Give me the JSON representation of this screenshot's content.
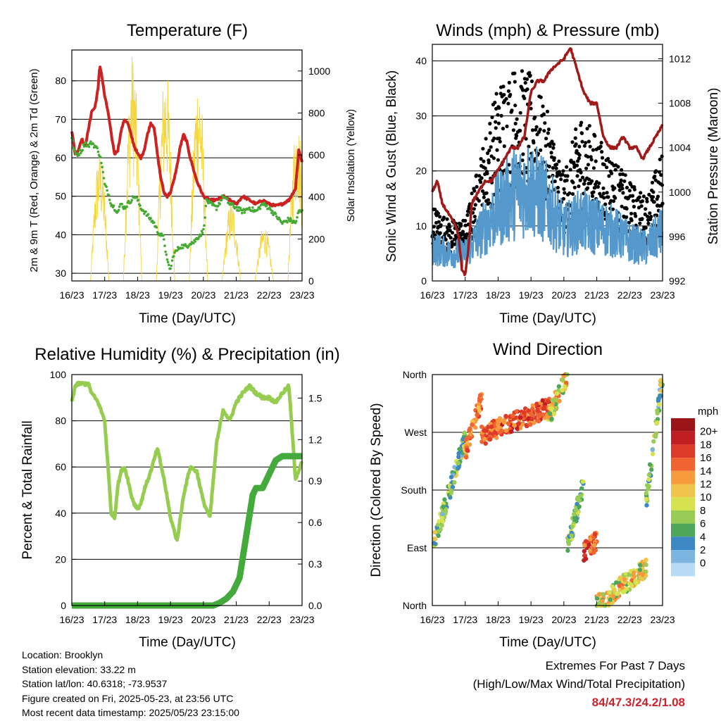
{
  "panels": {
    "temperature": {
      "title": "Temperature (F)",
      "xlabel": "Time (Day/UTC)",
      "ylabel_left": "2m & 9m T (Red, Orange) & 2m Td (Green)",
      "ylabel_right": "Solar Insolation (Yellow)"
    },
    "winds": {
      "title": "Winds (mph) & Pressure (mb)",
      "xlabel": "Time (Day/UTC)",
      "ylabel_left": "Sonic Wind & Gust (Blue, Black)",
      "ylabel_right": "Station Pressure (Maroon)"
    },
    "humidity": {
      "title": "Relative Humidity (%) & Precipitation (in)",
      "xlabel": "Time (Day/UTC)",
      "ylabel_left": "Percent & Total Rainfall"
    },
    "direction": {
      "title": "Wind Direction",
      "xlabel": "Time (Day/UTC)",
      "ylabel_left": "Direction (Colored By Speed)",
      "legend_title": "mph",
      "legend_labels": [
        "20+",
        "18",
        "16",
        "14",
        "12",
        "10",
        "8",
        "6",
        "4",
        "2",
        "0"
      ],
      "legend_colors": [
        "#9b1418",
        "#c01e22",
        "#dd3a2a",
        "#f06432",
        "#f79a3c",
        "#eec44a",
        "#d6e24e",
        "#98cc55",
        "#4ea65a",
        "#3d87c4",
        "#7cb5e0",
        "#b7dbf5"
      ]
    }
  },
  "info": {
    "location": "Location: Brooklyn",
    "elevation": "Station elevation: 33.22 m",
    "latlon": "Station lat/lon: 40.6318; -73.9537",
    "created": "Figure created on Fri, 2025-05-23, at 23:56 UTC",
    "recent": "Most recent data timestamp: 2025/05/23 23:15:00"
  },
  "extremes": {
    "line1": "Extremes For Past 7 Days",
    "line2": "(High/Low/Max Wind/Total Precipitation)",
    "values": "84/47.3/24.2/1.08"
  },
  "chart_data": [
    {
      "type": "line",
      "title": "Temperature (F)",
      "xlabel": "Time (Day/UTC)",
      "ylabel": "2m & 9m T (Red, Orange) & 2m Td (Green)",
      "y2label": "Solar Insolation (Yellow)",
      "x_ticks": [
        "16/23",
        "17/23",
        "18/23",
        "19/23",
        "20/23",
        "21/23",
        "22/23",
        "23/23"
      ],
      "xlim": [
        0,
        7
      ],
      "ylim": [
        28,
        88
      ],
      "yticks": [
        30,
        40,
        50,
        60,
        70,
        80
      ],
      "y2lim": [
        0,
        1100
      ],
      "y2ticks": [
        0,
        200,
        400,
        600,
        800,
        1000
      ],
      "colors": {
        "temp": "#cc2222",
        "dew": "#44aa33",
        "solar": "#f5d53a"
      },
      "series": [
        {
          "axis": "left",
          "color_key": "temp",
          "x": [
            0,
            0.1,
            0.2,
            0.3,
            0.4,
            0.5,
            0.6,
            0.7,
            0.8,
            0.85,
            0.9,
            1.0,
            1.1,
            1.2,
            1.3,
            1.4,
            1.5,
            1.6,
            1.7,
            1.8,
            1.9,
            2.0,
            2.1,
            2.2,
            2.3,
            2.4,
            2.5,
            2.6,
            2.7,
            2.8,
            2.9,
            3.0,
            3.1,
            3.2,
            3.3,
            3.4,
            3.5,
            3.6,
            3.7,
            3.8,
            3.9,
            4.0,
            4.2,
            4.4,
            4.6,
            4.8,
            5.0,
            5.2,
            5.4,
            5.6,
            5.8,
            6.0,
            6.2,
            6.4,
            6.6,
            6.8,
            6.9,
            7.0
          ],
          "values": [
            67,
            61,
            62,
            65,
            63,
            67,
            72,
            73,
            78,
            84,
            82,
            76,
            72,
            66,
            61,
            62,
            67,
            70,
            69,
            66,
            63,
            61,
            60,
            62,
            66,
            69,
            68,
            61,
            55,
            51,
            50,
            51,
            54,
            58,
            63,
            66,
            64,
            60,
            57,
            54,
            52,
            50,
            49,
            49,
            50,
            49,
            48,
            50,
            49,
            48,
            49,
            48,
            47.5,
            48,
            49,
            52,
            62,
            59
          ]
        },
        {
          "axis": "left",
          "color_key": "dew",
          "x": [
            0,
            0.1,
            0.2,
            0.3,
            0.4,
            0.5,
            0.6,
            0.7,
            0.8,
            0.9,
            1.0,
            1.1,
            1.2,
            1.3,
            1.4,
            1.5,
            1.6,
            1.7,
            1.8,
            1.9,
            2.0,
            2.1,
            2.2,
            2.3,
            2.4,
            2.5,
            2.6,
            2.7,
            2.8,
            2.9,
            3.0,
            3.1,
            3.2,
            3.3,
            3.4,
            3.5,
            3.6,
            3.7,
            3.8,
            3.9,
            4.0,
            4.1,
            4.2,
            4.4,
            4.6,
            4.8,
            5.0,
            5.2,
            5.4,
            5.6,
            5.8,
            6.0,
            6.2,
            6.4,
            6.6,
            6.8,
            6.9,
            7.0
          ],
          "values": [
            65,
            61,
            61,
            62,
            64,
            63,
            64,
            63,
            62,
            59,
            53,
            51,
            48,
            47,
            46,
            48,
            47,
            48,
            49,
            50,
            49,
            47,
            46,
            45,
            44,
            43,
            41,
            40,
            39,
            33,
            31,
            35,
            36,
            37,
            37,
            37,
            38,
            38,
            39,
            40,
            41,
            49,
            48,
            47,
            50,
            48,
            47,
            46,
            47,
            46,
            48,
            47,
            45,
            43,
            44,
            43,
            46,
            46
          ]
        },
        {
          "axis": "right",
          "color_key": "solar",
          "note": "diurnal insolation, peak values per day",
          "day_peaks": [
            640,
            1100,
            1050,
            1010,
            390,
            270,
            800
          ],
          "day_center": [
            0.85,
            1.85,
            2.85,
            3.85,
            4.85,
            5.85,
            6.85
          ]
        }
      ]
    },
    {
      "type": "scatter",
      "title": "Winds (mph) & Pressure (mb)",
      "xlabel": "Time (Day/UTC)",
      "ylabel": "Sonic Wind & Gust (Blue, Black)",
      "y2label": "Station Pressure (Maroon)",
      "x_ticks": [
        "16/23",
        "17/23",
        "18/23",
        "19/23",
        "20/23",
        "21/23",
        "22/23",
        "23/23"
      ],
      "xlim": [
        0,
        7
      ],
      "ylim": [
        0,
        43
      ],
      "yticks": [
        0,
        10,
        20,
        30,
        40
      ],
      "y2lim": [
        992,
        1013.3
      ],
      "y2ticks": [
        992,
        996,
        1000,
        1004,
        1008,
        1012
      ],
      "colors": {
        "wind": "#5599cc",
        "gust": "#000000",
        "pressure": "#a01a1a"
      },
      "series": [
        {
          "name_key": "wind",
          "axis": "left",
          "envelope_x": [
            0,
            0.5,
            1,
            1.5,
            2,
            2.5,
            3,
            3.5,
            4,
            4.5,
            5,
            5.5,
            6,
            6.5,
            7
          ],
          "envelope_mean": [
            6,
            5,
            5,
            9,
            13,
            16,
            17,
            14,
            9,
            11,
            10,
            9,
            7,
            6,
            9
          ]
        },
        {
          "name_key": "gust",
          "axis": "left",
          "envelope_x": [
            0,
            0.5,
            1,
            1.5,
            2,
            2.5,
            3,
            3.5,
            4,
            4.5,
            5,
            5.5,
            6,
            6.5,
            7
          ],
          "envelope_mean": [
            10,
            8,
            8,
            17,
            26,
            28,
            27,
            22,
            14,
            22,
            19,
            16,
            13,
            11,
            17
          ]
        },
        {
          "name_key": "pressure",
          "axis": "right",
          "x": [
            0,
            0.15,
            0.3,
            0.5,
            0.7,
            0.8,
            0.9,
            1.0,
            1.1,
            1.2,
            1.4,
            1.6,
            1.8,
            2.0,
            2.2,
            2.4,
            2.6,
            2.8,
            3.0,
            3.2,
            3.4,
            3.6,
            3.8,
            4.0,
            4.2,
            4.4,
            4.6,
            4.8,
            5.0,
            5.2,
            5.4,
            5.6,
            5.8,
            6.0,
            6.2,
            6.4,
            6.6,
            6.8,
            7.0
          ],
          "values": [
            1000,
            1001,
            999,
            998,
            997,
            996,
            993,
            992.5,
            995,
            999,
            1000,
            1001,
            1001,
            1002,
            1003,
            1004,
            1004,
            1005,
            1009,
            1010,
            1010,
            1011,
            1011.5,
            1012,
            1013,
            1011,
            1009,
            1008,
            1008,
            1005,
            1004,
            1004,
            1005,
            1004,
            1004,
            1003,
            1004,
            1005,
            1006
          ]
        }
      ]
    },
    {
      "type": "line",
      "title": "Relative Humidity (%) & Precipitation (in)",
      "xlabel": "Time (Day/UTC)",
      "ylabel": "Percent & Total Rainfall",
      "x_ticks": [
        "16/23",
        "17/23",
        "18/23",
        "19/23",
        "20/23",
        "21/23",
        "22/23",
        "23/23"
      ],
      "xlim": [
        0,
        7
      ],
      "ylim": [
        0,
        100
      ],
      "yticks": [
        0,
        20,
        40,
        60,
        80,
        100
      ],
      "y2lim": [
        0,
        1.67
      ],
      "y2ticks": [
        0.0,
        0.3,
        0.6,
        0.9,
        1.2,
        1.5
      ],
      "y2tick_labels": [
        "0.0",
        "0.3",
        "0.6",
        "0.9",
        "1.2",
        "1.5"
      ],
      "colors": {
        "rh": "#96cc50",
        "precip": "#44aa3c"
      },
      "series": [
        {
          "axis": "left",
          "color_key": "rh",
          "x": [
            0,
            0.1,
            0.2,
            0.4,
            0.5,
            0.6,
            0.8,
            1.0,
            1.1,
            1.2,
            1.3,
            1.4,
            1.5,
            1.6,
            1.7,
            1.8,
            1.9,
            2.0,
            2.1,
            2.2,
            2.4,
            2.6,
            2.8,
            3.0,
            3.2,
            3.4,
            3.6,
            3.8,
            4.0,
            4.2,
            4.4,
            4.6,
            4.8,
            5.0,
            5.2,
            5.4,
            5.6,
            5.8,
            6.0,
            6.2,
            6.4,
            6.6,
            6.8,
            7.0
          ],
          "values": [
            88,
            95,
            96,
            96,
            96,
            92,
            88,
            80,
            60,
            40,
            38,
            52,
            58,
            60,
            55,
            48,
            44,
            42,
            44,
            50,
            58,
            68,
            55,
            38,
            28,
            48,
            60,
            58,
            45,
            38,
            70,
            85,
            80,
            88,
            92,
            95,
            92,
            90,
            90,
            88,
            92,
            95,
            55,
            62
          ]
        },
        {
          "axis": "right",
          "color_key": "precip",
          "x": [
            0,
            4.3,
            4.5,
            4.7,
            4.9,
            5.1,
            5.2,
            5.3,
            5.5,
            5.6,
            5.8,
            6.0,
            6.2,
            6.4,
            6.6,
            7.0
          ],
          "values": [
            0,
            0,
            0.02,
            0.05,
            0.1,
            0.2,
            0.35,
            0.5,
            0.8,
            0.85,
            0.85,
            0.95,
            1.05,
            1.08,
            1.08,
            1.08
          ]
        }
      ]
    },
    {
      "type": "scatter",
      "title": "Wind Direction",
      "xlabel": "Time (Day/UTC)",
      "ylabel": "Direction (Colored By Speed)",
      "x_ticks": [
        "16/23",
        "17/23",
        "18/23",
        "19/23",
        "20/23",
        "21/23",
        "22/23",
        "23/23"
      ],
      "xlim": [
        0,
        7
      ],
      "ylim": [
        0,
        360
      ],
      "yticks": [
        0,
        90,
        180,
        270,
        360
      ],
      "ytick_labels": [
        "North",
        "East",
        "South",
        "West",
        "North"
      ],
      "colorbar": {
        "title": "mph",
        "labels": [
          "20+",
          "18",
          "16",
          "14",
          "12",
          "10",
          "8",
          "6",
          "4",
          "2",
          "0"
        ]
      },
      "clusters": [
        {
          "x": [
            0,
            1.0
          ],
          "direction": [
            90,
            260
          ],
          "speed": [
            2,
            12
          ]
        },
        {
          "x": [
            1.0,
            1.5
          ],
          "direction": [
            240,
            320
          ],
          "speed": [
            12,
            18
          ]
        },
        {
          "x": [
            1.5,
            3.6
          ],
          "direction": [
            265,
            310
          ],
          "speed": [
            14,
            20
          ]
        },
        {
          "x": [
            3.5,
            4.1
          ],
          "direction": [
            290,
            360
          ],
          "speed": [
            6,
            16
          ]
        },
        {
          "x": [
            4.1,
            4.6
          ],
          "direction": [
            90,
            190
          ],
          "speed": [
            4,
            10
          ]
        },
        {
          "x": [
            4.6,
            5.0
          ],
          "direction": [
            85,
            100
          ],
          "speed": [
            14,
            20
          ]
        },
        {
          "x": [
            5.0,
            6.5
          ],
          "direction": [
            0,
            60
          ],
          "speed": [
            6,
            16
          ]
        },
        {
          "x": [
            6.5,
            7.0
          ],
          "direction": [
            160,
            360
          ],
          "speed": [
            2,
            12
          ]
        }
      ]
    }
  ]
}
